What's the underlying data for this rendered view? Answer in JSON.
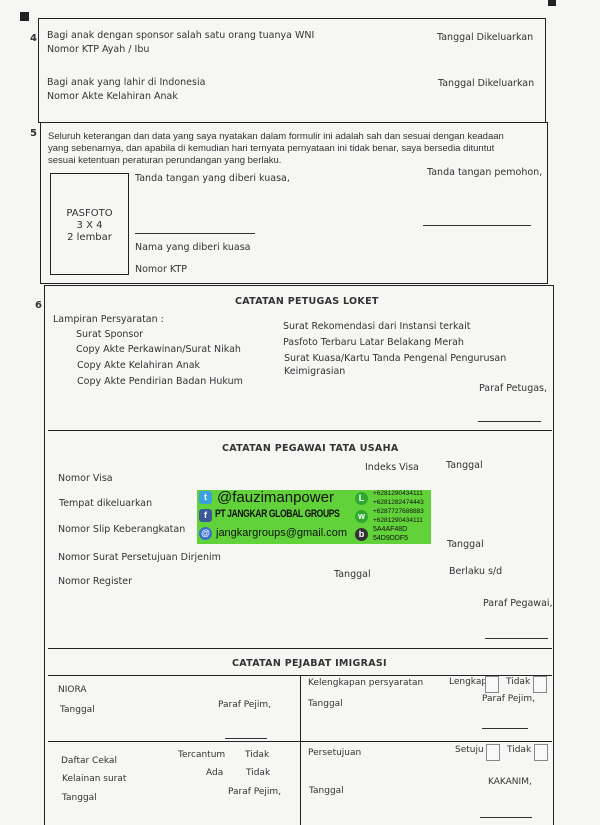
{
  "section4": {
    "number": "4",
    "sponsor_label": "Bagi anak dengan sponsor salah satu orang tuanya WNI",
    "ktp_label": "Nomor KTP Ayah / Ibu",
    "date1_label": "Tanggal Dikeluarkan",
    "born_label": "Bagi anak yang lahir di Indonesia",
    "akte_label": "Nomor Akte Kelahiran Anak",
    "date2_label": "Tanggal Dikeluarkan"
  },
  "section5": {
    "number": "5",
    "statement_line1": "Seluruh keterangan dan data yang saya nyatakan dalam formulir ini adalah sah dan sesuai dengan keadaan",
    "statement_line2": "yang sebenarnya, dan apabila di kemudian hari ternyata pernyataan ini tidak benar, saya bersedia dituntut",
    "statement_line3": "sesuai ketentuan peraturan perundangan yang berlaku.",
    "photo_line1": "PASFOTO",
    "photo_line2": "3 X 4",
    "photo_line3": "2 lembar",
    "proxy_signature": "Tanda tangan yang diberi kuasa,",
    "applicant_signature": "Tanda tangan pemohon,",
    "proxy_name": "Nama yang diberi kuasa",
    "ktp_number": "Nomor KTP"
  },
  "section6": {
    "number": "6",
    "loket": {
      "title": "CATATAN PETUGAS LOKET",
      "attachments_label": "Lampiran Persyaratan :",
      "left_items": [
        "Surat Sponsor",
        "Copy Akte Perkawinan/Surat Nikah",
        "Copy Akte Kelahiran Anak",
        "Copy Akte Pendirian Badan Hukum"
      ],
      "right_items": [
        "Surat Rekomendasi dari Instansi terkait",
        "Pasfoto Terbaru Latar Belakang Merah",
        "Surat Kuasa/Kartu Tanda Pengenal Pengurusan",
        "Keimigrasian"
      ],
      "paraf": "Paraf Petugas,"
    },
    "tata_usaha": {
      "title": "CATATAN PEGAWAI TATA USAHA",
      "nomor_visa": "Nomor Visa",
      "indeks_visa": "Indeks Visa",
      "tanggal1": "Tanggal",
      "tempat": "Tempat dikeluarkan",
      "slip": "Nomor Slip Keberangkatan",
      "tanggal2": "Tanggal",
      "persetujuan": "Nomor Surat Persetujuan Dirjenim",
      "register": "Nomor Register",
      "tanggal3": "Tanggal",
      "berlaku": "Berlaku s/d",
      "paraf": "Paraf Pegawai,"
    },
    "pejabat": {
      "title": "CATATAN PEJABAT IMIGRASI",
      "niora": "NIORA",
      "tanggal_a": "Tanggal",
      "paraf_a": "Paraf Pejim,",
      "kelengkapan": "Kelengkapan persyaratan",
      "lengkap": "Lengkap",
      "tidak_a": "Tidak",
      "tanggal_b": "Tanggal",
      "paraf_b": "Paraf Pejim,",
      "cekal": "Daftar Cekal",
      "tercantum": "Tercantum",
      "tidak_b": "Tidak",
      "kelainan": "Kelainan surat",
      "ada": "Ada",
      "tidak_c": "Tidak",
      "tanggal_c": "Tanggal",
      "paraf_c": "Paraf Pejim,",
      "persetujuan": "Persetujuan",
      "setuju": "Setuju",
      "tidak_d": "Tidak",
      "tanggal_d": "Tanggal",
      "kakanim": "KAKANIM,"
    }
  },
  "watermark": {
    "twitter": "@fauzimanpower",
    "company": "PT JANGKAR GLOBAL GROUPS",
    "email": "jangkargroups@gmail.com",
    "phones": [
      "+6281290434111",
      "+6281282474443",
      "+6287727688883",
      "+6281290434111"
    ],
    "pin": [
      "5A4AF48D",
      "54D9DDF5"
    ],
    "color": "#62d23a"
  }
}
